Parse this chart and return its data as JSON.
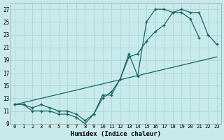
{
  "title": "",
  "xlabel": "Humidex (Indice chaleur)",
  "background_color": "#c8eaea",
  "grid_color": "#b0d8d8",
  "line_color": "#1a6666",
  "ylim": [
    9,
    28
  ],
  "xlim": [
    -0.5,
    23.5
  ],
  "yticks": [
    9,
    11,
    13,
    15,
    17,
    19,
    21,
    23,
    25,
    27
  ],
  "xticks": [
    0,
    1,
    2,
    3,
    4,
    5,
    6,
    7,
    8,
    9,
    10,
    11,
    12,
    13,
    14,
    15,
    16,
    17,
    18,
    19,
    20,
    21,
    22,
    23
  ],
  "series": [
    {
      "x": [
        0,
        1,
        2,
        3,
        4,
        5,
        6,
        7,
        8,
        9,
        10,
        11,
        12,
        13,
        14,
        15,
        16,
        17,
        18,
        19,
        20,
        21,
        22,
        23
      ],
      "y": [
        12,
        12,
        11,
        11,
        11,
        10.5,
        10.5,
        10,
        9,
        10.5,
        13.5,
        13.5,
        16,
        20,
        16.5,
        25,
        27,
        27,
        26.5,
        26.5,
        25.5,
        22.5,
        null,
        null
      ],
      "markers": true
    },
    {
      "x": [
        0,
        1,
        2,
        3,
        4,
        5,
        6,
        7,
        8,
        9,
        10,
        11,
        12,
        13,
        14,
        15,
        16,
        17,
        18,
        19,
        20,
        21,
        22,
        23
      ],
      "y": [
        12,
        12,
        11.5,
        12,
        11.5,
        11,
        11,
        10.5,
        9.5,
        10.5,
        13,
        14,
        16,
        19.5,
        20,
        22,
        23.5,
        24.5,
        26.5,
        27,
        26.5,
        26.5,
        23,
        21.5
      ],
      "markers": true
    },
    {
      "x": [
        0,
        23
      ],
      "y": [
        12,
        19.5
      ],
      "markers": false
    }
  ]
}
